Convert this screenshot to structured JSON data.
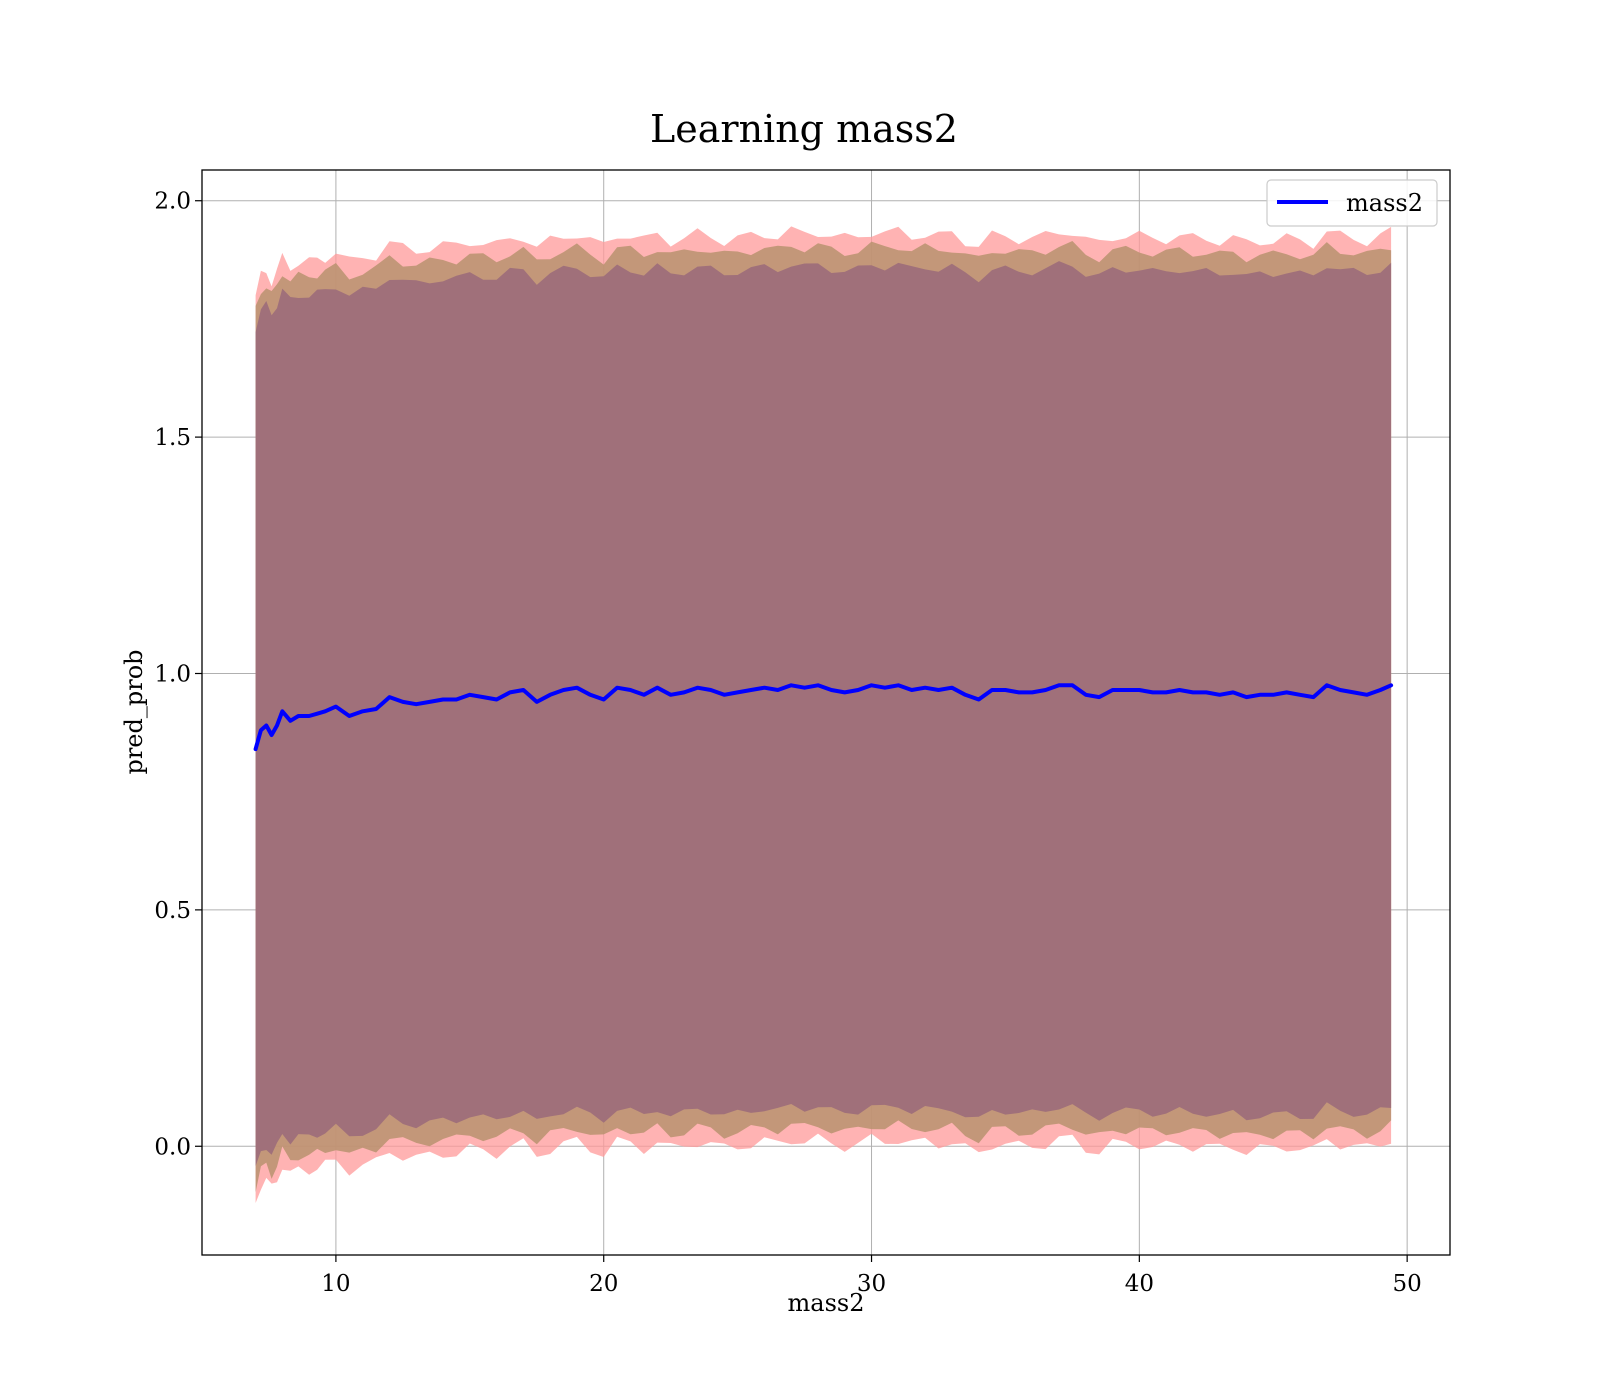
{
  "chart_data": {
    "type": "line",
    "title": "Learning mass2",
    "xlabel": "mass2",
    "ylabel": "pred_prob",
    "xlim": [
      5,
      51.6
    ],
    "ylim": [
      -0.23,
      2.065
    ],
    "xticks": [
      10,
      20,
      30,
      40,
      50
    ],
    "yticks": [
      0.0,
      0.5,
      1.0,
      1.5,
      2.0
    ],
    "xtick_labels": [
      "10",
      "20",
      "30",
      "40",
      "50"
    ],
    "ytick_labels": [
      "0.0",
      "0.5",
      "1.0",
      "1.5",
      "2.0"
    ],
    "grid": true,
    "legend": {
      "position": "top-right",
      "entries": [
        "mass2"
      ]
    },
    "colors": {
      "line": "#0000ff",
      "outer_band": "#ff9999",
      "middle_band": "#b8926e",
      "inner_band": "#a0707a",
      "grid": "#b0b0b0"
    },
    "series": [
      {
        "name": "mass2",
        "x": [
          7.0,
          7.2,
          7.4,
          7.6,
          7.8,
          8.0,
          8.3,
          8.6,
          9.0,
          9.3,
          9.6,
          10.0,
          10.5,
          11.0,
          11.5,
          12.0,
          12.5,
          13.0,
          13.5,
          14.0,
          14.5,
          15.0,
          15.5,
          16.0,
          16.5,
          17.0,
          17.5,
          18.0,
          18.5,
          19.0,
          19.5,
          20.0,
          20.5,
          21.0,
          21.5,
          22.0,
          22.5,
          23.0,
          23.5,
          24.0,
          24.5,
          25.0,
          25.5,
          26.0,
          26.5,
          27.0,
          27.5,
          28.0,
          28.5,
          29.0,
          29.5,
          30.0,
          30.5,
          31.0,
          31.5,
          32.0,
          32.5,
          33.0,
          33.5,
          34.0,
          34.5,
          35.0,
          35.5,
          36.0,
          36.5,
          37.0,
          37.5,
          38.0,
          38.5,
          39.0,
          39.5,
          40.0,
          40.5,
          41.0,
          41.5,
          42.0,
          42.5,
          43.0,
          43.5,
          44.0,
          44.5,
          45.0,
          45.5,
          46.0,
          46.5,
          47.0,
          47.5,
          48.0,
          48.5,
          49.0,
          49.4
        ],
        "y": [
          0.84,
          0.88,
          0.89,
          0.87,
          0.89,
          0.92,
          0.9,
          0.91,
          0.91,
          0.915,
          0.92,
          0.93,
          0.91,
          0.92,
          0.925,
          0.95,
          0.94,
          0.935,
          0.94,
          0.945,
          0.945,
          0.955,
          0.95,
          0.945,
          0.96,
          0.965,
          0.94,
          0.955,
          0.965,
          0.97,
          0.955,
          0.945,
          0.97,
          0.965,
          0.955,
          0.97,
          0.955,
          0.96,
          0.97,
          0.965,
          0.955,
          0.96,
          0.965,
          0.97,
          0.965,
          0.975,
          0.97,
          0.975,
          0.965,
          0.96,
          0.965,
          0.975,
          0.97,
          0.975,
          0.965,
          0.97,
          0.965,
          0.97,
          0.955,
          0.945,
          0.965,
          0.965,
          0.96,
          0.96,
          0.965,
          0.975,
          0.975,
          0.955,
          0.95,
          0.965,
          0.965,
          0.965,
          0.96,
          0.96,
          0.965,
          0.96,
          0.96,
          0.955,
          0.96,
          0.95,
          0.955,
          0.955,
          0.96,
          0.955,
          0.95,
          0.975,
          0.965,
          0.96,
          0.955,
          0.965,
          0.975
        ]
      }
    ],
    "bands": [
      {
        "level": "outer",
        "upper_offset": 0.96,
        "lower_offset": -0.96,
        "jitter": 0.012
      },
      {
        "level": "middle",
        "upper_offset": 0.93,
        "lower_offset": -0.93,
        "jitter": 0.01
      },
      {
        "level": "inner",
        "upper_offset": 0.89,
        "lower_offset": -0.89,
        "jitter": 0.008
      }
    ]
  }
}
